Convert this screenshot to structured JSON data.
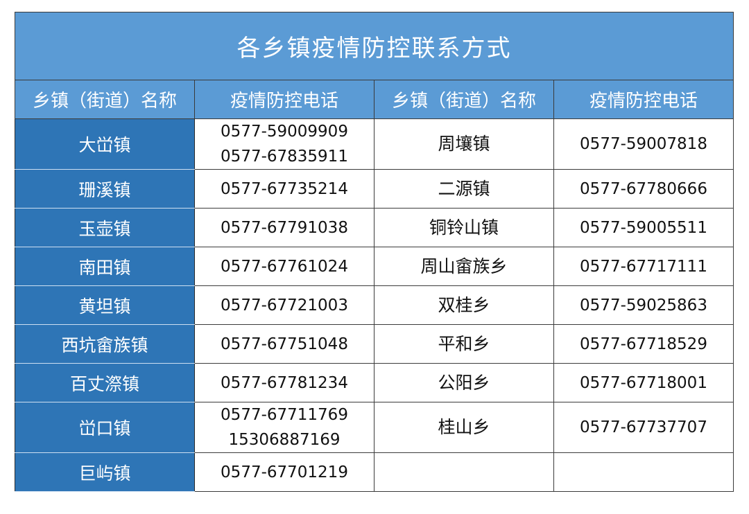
{
  "title": "各乡镇疫情防控联系方式",
  "headers": [
    "乡镇（街道）名称",
    "疫情防控电话",
    "乡镇（街道）名称",
    "疫情防控电话"
  ],
  "colors": {
    "header_bg": "#5b9bd5",
    "name_col_bg": "#2e75b6"
  },
  "rows": [
    {
      "left_name": "大峃镇",
      "left_phone": [
        "0577-59009909",
        "0577-67835911"
      ],
      "right_name": "周壤镇",
      "right_phone": "0577-59007818"
    },
    {
      "left_name": "珊溪镇",
      "left_phone": [
        "0577-67735214"
      ],
      "right_name": "二源镇",
      "right_phone": "0577-67780666"
    },
    {
      "left_name": "玉壶镇",
      "left_phone": [
        "0577-67791038"
      ],
      "right_name": "铜铃山镇",
      "right_phone": "0577-59005511"
    },
    {
      "left_name": "南田镇",
      "left_phone": [
        "0577-67761024"
      ],
      "right_name": "周山畲族乡",
      "right_phone": "0577-67717111"
    },
    {
      "left_name": "黄坦镇",
      "left_phone": [
        "0577-67721003"
      ],
      "right_name": "双桂乡",
      "right_phone": "0577-59025863"
    },
    {
      "left_name": "西坑畲族镇",
      "left_phone": [
        "0577-67751048"
      ],
      "right_name": "平和乡",
      "right_phone": "0577-67718529"
    },
    {
      "left_name": "百丈漈镇",
      "left_phone": [
        "0577-67781234"
      ],
      "right_name": "公阳乡",
      "right_phone": "0577-67718001"
    },
    {
      "left_name": "峃口镇",
      "left_phone": [
        "0577-67711769",
        "15306887169"
      ],
      "right_name": "桂山乡",
      "right_phone": "0577-67737707"
    },
    {
      "left_name": "巨屿镇",
      "left_phone": [
        "0577-67701219"
      ],
      "right_name": "",
      "right_phone": ""
    }
  ]
}
